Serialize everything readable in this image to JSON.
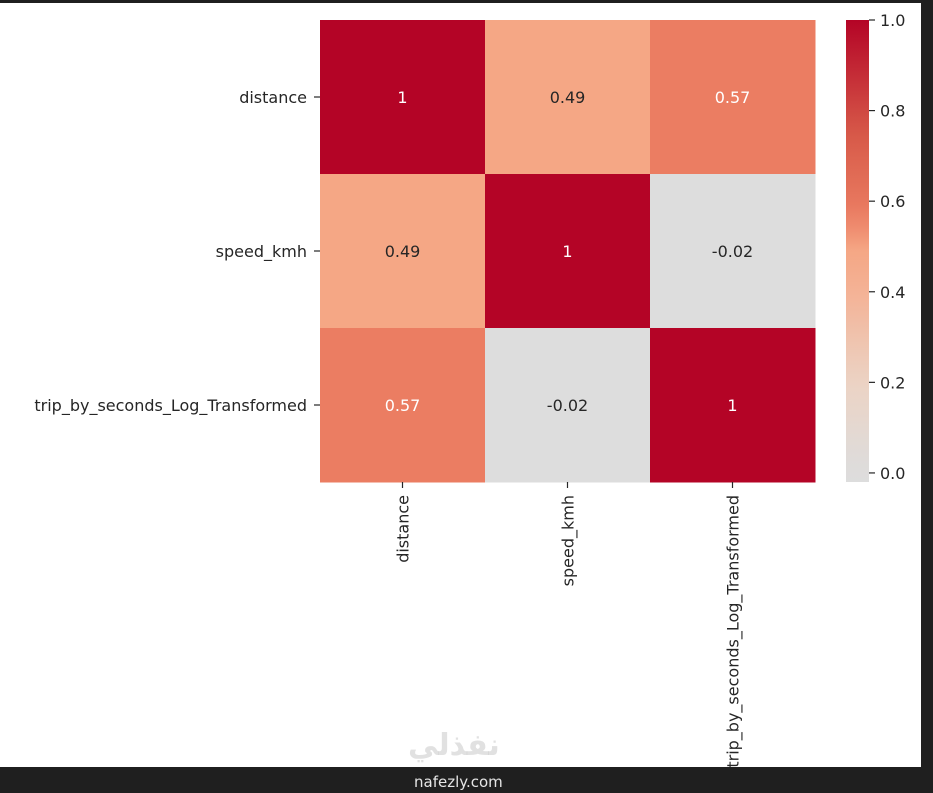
{
  "chart_data": {
    "type": "heatmap",
    "rows": [
      "distance",
      "speed_kmh",
      "trip_by_seconds_Log_Transformed"
    ],
    "cols": [
      "distance",
      "speed_kmh",
      "trip_by_seconds_Log_Transformed"
    ],
    "values": [
      [
        1,
        0.49,
        0.57
      ],
      [
        0.49,
        1,
        -0.02
      ],
      [
        0.57,
        -0.02,
        1
      ]
    ],
    "annotations": [
      [
        "1",
        "0.49",
        "0.57"
      ],
      [
        "0.49",
        "1",
        "-0.02"
      ],
      [
        "0.57",
        "-0.02",
        "1"
      ]
    ],
    "colormap": "coolwarm (centered at 0)",
    "colorbar": {
      "range": [
        -0.02,
        1.0
      ],
      "ticks": [
        0.0,
        0.2,
        0.4,
        0.6,
        0.8,
        1.0
      ],
      "tick_labels": [
        "0.0",
        "0.2",
        "0.4",
        "0.6",
        "0.8",
        "1.0"
      ]
    },
    "title": "",
    "xlabel": "",
    "ylabel": ""
  },
  "watermark": {
    "arabic": "نفذلي",
    "latin": "nafezly.com"
  },
  "colors": {
    "max": "#b40426",
    "mid_high": "#e8795f",
    "mid": "#f4a584",
    "zero": "#dddddd",
    "background": "#1f1f1f"
  }
}
